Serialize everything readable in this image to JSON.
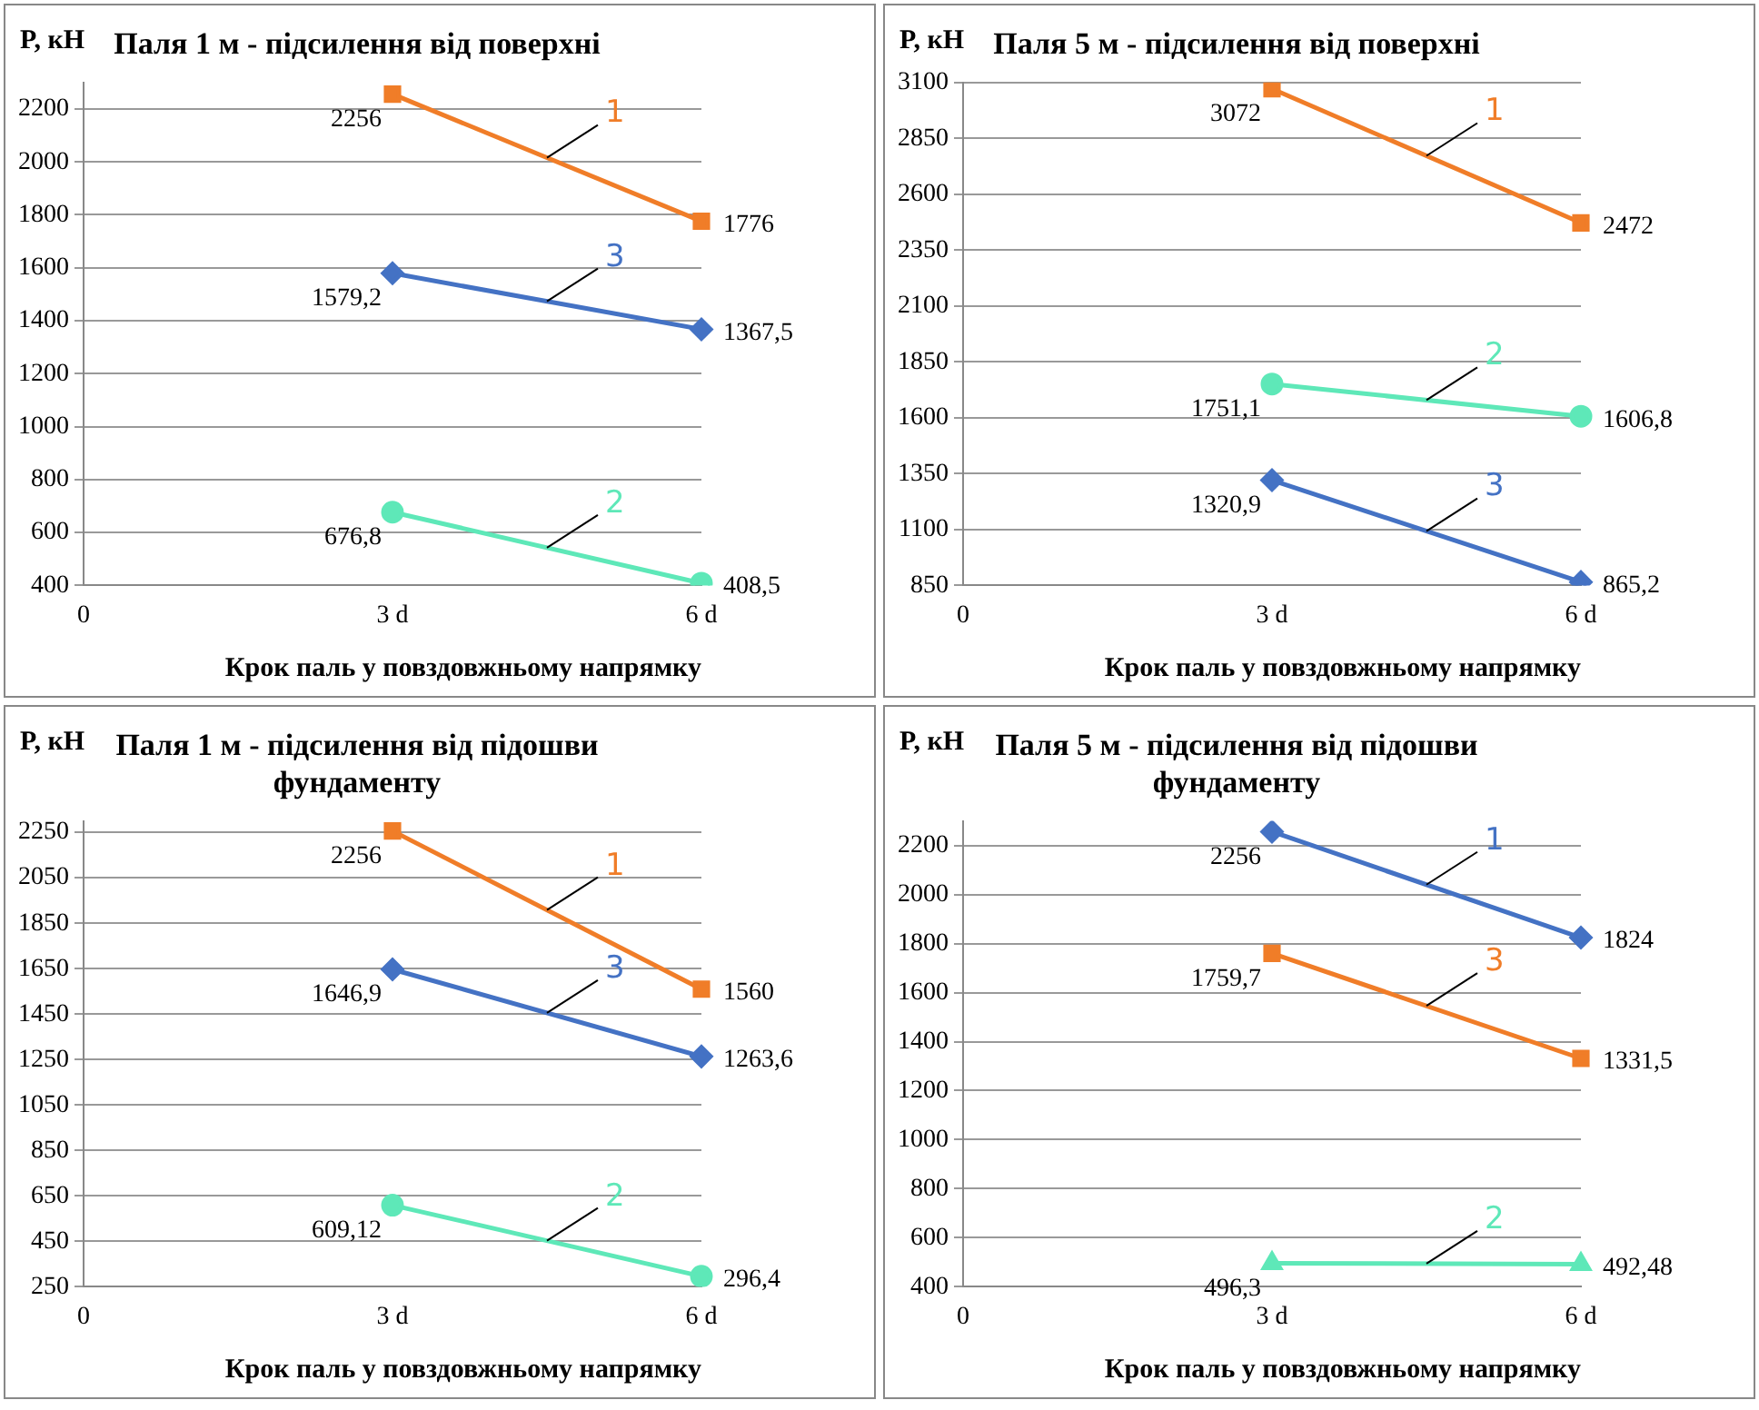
{
  "chart_data": [
    {
      "type": "line",
      "title": "Паля 1 м - підсилення від поверхні",
      "ylabel": "P, кН",
      "xlabel": "Крок паль у повздовжньому напрямку",
      "categories": [
        "0",
        "3 d",
        "6 d"
      ],
      "ylim": [
        400,
        2300
      ],
      "yticks": [
        400,
        600,
        800,
        1000,
        1200,
        1400,
        1600,
        1800,
        2000,
        2200
      ],
      "grid": "y",
      "legend": false,
      "series": [
        {
          "name": "1",
          "color": "#f07d28",
          "marker": "square",
          "values": [
            null,
            2256,
            1776
          ],
          "value_labels": [
            null,
            "2256",
            "1776"
          ]
        },
        {
          "name": "3",
          "color": "#4472c4",
          "marker": "diamond",
          "values": [
            null,
            1579.2,
            1367.5
          ],
          "value_labels": [
            null,
            "1579,2",
            "1367,5"
          ]
        },
        {
          "name": "2",
          "color": "#5ee8b8",
          "marker": "circle",
          "values": [
            null,
            676.8,
            408.5
          ],
          "value_labels": [
            null,
            "676,8",
            "408,5"
          ]
        }
      ]
    },
    {
      "type": "line",
      "title": "Паля 5 м - підсилення від поверхні",
      "ylabel": "P, кН",
      "xlabel": "Крок паль у повздовжньому напрямку",
      "categories": [
        "0",
        "3 d",
        "6 d"
      ],
      "ylim": [
        850,
        3100
      ],
      "yticks": [
        850,
        1100,
        1350,
        1600,
        1850,
        2100,
        2350,
        2600,
        2850,
        3100
      ],
      "grid": "y",
      "legend": false,
      "series": [
        {
          "name": "1",
          "color": "#f07d28",
          "marker": "square",
          "values": [
            null,
            3072,
            2472
          ],
          "value_labels": [
            null,
            "3072",
            "2472"
          ]
        },
        {
          "name": "2",
          "color": "#5ee8b8",
          "marker": "circle",
          "values": [
            null,
            1751.1,
            1606.8
          ],
          "value_labels": [
            null,
            "1751,1",
            "1606,8"
          ]
        },
        {
          "name": "3",
          "color": "#4472c4",
          "marker": "diamond",
          "values": [
            null,
            1320.9,
            865.2
          ],
          "value_labels": [
            null,
            "1320,9",
            "865,2"
          ]
        }
      ]
    },
    {
      "type": "line",
      "title": "Паля 1 м - підсилення від підошви фундаменту",
      "ylabel": "P, кН",
      "xlabel": "Крок паль у повздовжньому напрямку",
      "categories": [
        "0",
        "3 d",
        "6 d"
      ],
      "ylim": [
        250,
        2300
      ],
      "yticks": [
        250,
        450,
        650,
        850,
        1050,
        1250,
        1450,
        1650,
        1850,
        2050,
        2250
      ],
      "grid": "y",
      "legend": false,
      "series": [
        {
          "name": "1",
          "color": "#f07d28",
          "marker": "square",
          "values": [
            null,
            2256,
            1560
          ],
          "value_labels": [
            null,
            "2256",
            "1560"
          ]
        },
        {
          "name": "3",
          "color": "#4472c4",
          "marker": "diamond",
          "values": [
            null,
            1646.9,
            1263.6
          ],
          "value_labels": [
            null,
            "1646,9",
            "1263,6"
          ]
        },
        {
          "name": "2",
          "color": "#5ee8b8",
          "marker": "circle",
          "values": [
            null,
            609.12,
            296.4
          ],
          "value_labels": [
            null,
            "609,12",
            "296,4"
          ]
        }
      ]
    },
    {
      "type": "line",
      "title": "Паля 5 м - підсилення від підошви фундаменту",
      "ylabel": "P, кН",
      "xlabel": "Крок паль у повздовжньому напрямку",
      "categories": [
        "0",
        "3 d",
        "6 d"
      ],
      "ylim": [
        400,
        2300
      ],
      "yticks": [
        400,
        600,
        800,
        1000,
        1200,
        1400,
        1600,
        1800,
        2000,
        2200
      ],
      "grid": "y",
      "legend": false,
      "series": [
        {
          "name": "1",
          "color": "#4472c4",
          "marker": "diamond",
          "values": [
            null,
            2256,
            1824
          ],
          "value_labels": [
            null,
            "2256",
            "1824"
          ]
        },
        {
          "name": "3",
          "color": "#f07d28",
          "marker": "square",
          "values": [
            null,
            1759.7,
            1331.5
          ],
          "value_labels": [
            null,
            "1759,7",
            "1331,5"
          ]
        },
        {
          "name": "2",
          "color": "#5ee8b8",
          "marker": "triangle",
          "values": [
            null,
            496.3,
            492.48
          ],
          "value_labels": [
            null,
            "496,3",
            "492,48"
          ]
        }
      ]
    }
  ]
}
